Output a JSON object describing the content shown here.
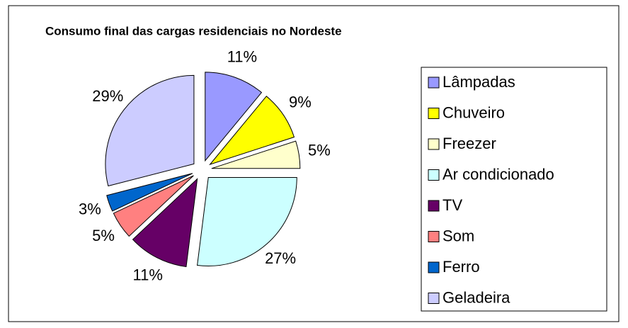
{
  "chart_data": {
    "type": "pie",
    "title": "Consumo final das cargas residenciais no Nordeste",
    "categories": [
      "Lâmpadas",
      "Chuveiro",
      "Freezer",
      "Ar condicionado",
      "TV",
      "Som",
      "Ferro",
      "Geladeira"
    ],
    "values": [
      11,
      9,
      5,
      27,
      11,
      5,
      3,
      29
    ],
    "value_labels": [
      "11%",
      "9%",
      "5%",
      "27%",
      "11%",
      "5%",
      "3%",
      "29%"
    ],
    "colors": [
      "#9999ff",
      "#ffff00",
      "#ffffcc",
      "#ccffff",
      "#660066",
      "#ff8080",
      "#0066cc",
      "#ccccff"
    ],
    "legend": "right"
  }
}
